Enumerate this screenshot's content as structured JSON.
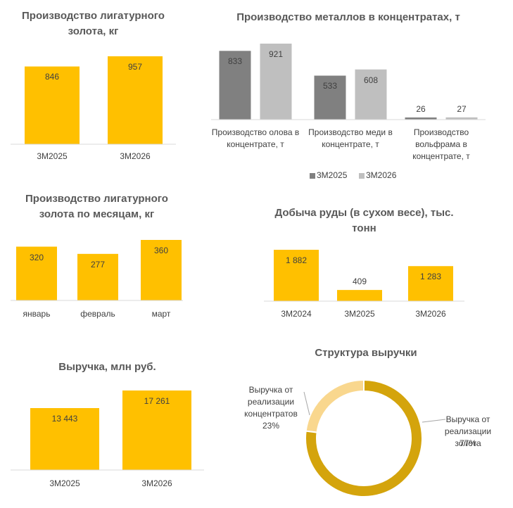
{
  "chart_data": [
    {
      "type": "bar",
      "title": "Производство лигатурного золота, кг",
      "categories": [
        "3М2025",
        "3М2026"
      ],
      "values": [
        846,
        957
      ],
      "color": "#ffc000"
    },
    {
      "type": "grouped_bar",
      "title": "Производство металлов в концентратах, т",
      "categories": [
        "Производство олова в концентрате, т",
        "Производство меди в концентрате, т",
        "Производство вольфрама в концентрате, т"
      ],
      "series": [
        {
          "name": "3М2025",
          "color": "#808080",
          "values": [
            833,
            533,
            26
          ]
        },
        {
          "name": "3М2026",
          "color": "#bfbfbf",
          "values": [
            921,
            608,
            27
          ]
        }
      ],
      "legend": "bottom"
    },
    {
      "type": "bar",
      "title": "Производство лигатурного золота по месяцам, кг",
      "categories": [
        "январь",
        "февраль",
        "март"
      ],
      "values": [
        320,
        277,
        360
      ],
      "color": "#ffc000"
    },
    {
      "type": "bar",
      "title": "Добыча руды (в сухом весе), тыс. тонн",
      "categories": [
        "3М2024",
        "3М2025",
        "3М2026"
      ],
      "values": [
        1882,
        409,
        1283
      ],
      "value_labels": [
        "1 882",
        "409",
        "1 283"
      ],
      "color": "#ffc000"
    },
    {
      "type": "bar",
      "title": "Выручка, млн руб.",
      "categories": [
        "3М2025",
        "3М2026"
      ],
      "values": [
        13443,
        17261
      ],
      "value_labels": [
        "13 443",
        "17 261"
      ],
      "color": "#ffc000"
    },
    {
      "type": "donut",
      "title": "Структура выручки",
      "categories": [
        "Выручка от реализации концентратов",
        "Выручка от реализации золота"
      ],
      "values": [
        23,
        77
      ],
      "value_labels": [
        "23%",
        "77%"
      ],
      "colors": [
        "#f9d78e",
        "#d4a40c"
      ]
    }
  ]
}
